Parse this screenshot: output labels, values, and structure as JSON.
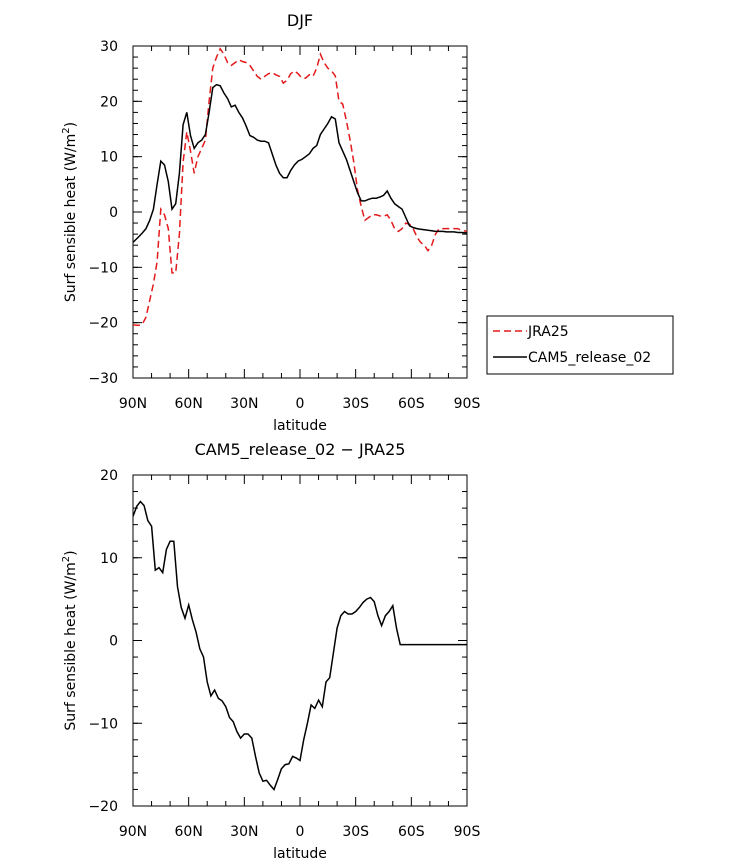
{
  "chart_data": [
    {
      "type": "line",
      "title": "DJF",
      "xlabel": "latitude",
      "ylabel": "Surf sensible heat (W/m",
      "ylabel_sup": "2",
      "ylabel_close": ")",
      "xlim": [
        90,
        -90
      ],
      "ylim": [
        -30,
        30
      ],
      "xticks": [
        90,
        60,
        30,
        0,
        -30,
        -60,
        -90
      ],
      "xtick_labels": [
        "90N",
        "60N",
        "30N",
        "0",
        "30S",
        "60S",
        "90S"
      ],
      "yticks": [
        -30,
        -20,
        -10,
        0,
        10,
        20,
        30
      ],
      "ytick_labels": [
        "−30",
        "−20",
        "−10",
        "0",
        "10",
        "20",
        "30"
      ],
      "legend": {
        "position": "right",
        "entries": [
          "JRA25",
          "CAM5_release_02"
        ]
      },
      "series": [
        {
          "name": "JRA25",
          "color": "#e31a1c",
          "dash": true,
          "x": [
            90,
            87,
            85,
            83,
            81,
            79,
            77,
            75,
            73,
            71,
            69,
            67,
            65,
            63,
            61,
            59,
            57,
            55,
            53,
            51,
            49,
            47,
            45,
            43,
            41,
            39,
            37,
            35,
            33,
            31,
            29,
            27,
            25,
            23,
            21,
            19,
            17,
            15,
            13,
            11,
            9,
            7,
            5,
            3,
            1,
            -1,
            -3,
            -5,
            -7,
            -9,
            -11,
            -13,
            -15,
            -17,
            -19,
            -21,
            -23,
            -25,
            -27,
            -29,
            -31,
            -33,
            -35,
            -37,
            -39,
            -41,
            -43,
            -45,
            -47,
            -49,
            -51,
            -53,
            -55,
            -57,
            -59,
            -61,
            -63,
            -65,
            -67,
            -69,
            -71,
            -73,
            -75,
            -77,
            -79,
            -81,
            -83,
            -85,
            -87,
            -90
          ],
          "values": [
            -20.4,
            -20.5,
            -20.3,
            -19,
            -16,
            -13,
            -9,
            0.5,
            -0.5,
            -3,
            -11,
            -11,
            -4,
            9,
            14.5,
            11,
            7,
            10,
            11.5,
            13,
            20,
            26,
            28,
            29.5,
            28.5,
            27,
            26.5,
            27,
            27.5,
            27.2,
            27,
            26.5,
            25.5,
            24.5,
            24,
            24.5,
            25,
            25.2,
            24.8,
            24.5,
            23.3,
            23.8,
            25,
            25.5,
            25,
            24.2,
            24.2,
            24.8,
            24.5,
            26,
            28.5,
            27,
            26,
            25.5,
            24.6,
            20,
            19.5,
            16.5,
            13,
            9,
            4,
            1,
            -1.5,
            -1,
            -0.5,
            -0.5,
            -0.7,
            -0.8,
            -0.5,
            -1.5,
            -3,
            -3.5,
            -3,
            -2,
            -2.2,
            -3,
            -4.5,
            -5.5,
            -6,
            -7,
            -6,
            -4,
            -3,
            -3,
            -3,
            -3,
            -3,
            -3,
            -3.3,
            -3.5
          ]
        },
        {
          "name": "CAM5_release_02",
          "color": "#000000",
          "dash": false,
          "x": [
            90,
            87,
            85,
            83,
            81,
            79,
            77,
            75,
            73,
            71,
            69,
            67,
            65,
            63,
            61,
            59,
            57,
            55,
            53,
            51,
            49,
            47,
            45,
            43,
            41,
            39,
            37,
            35,
            33,
            31,
            29,
            27,
            25,
            23,
            21,
            19,
            17,
            15,
            13,
            11,
            9,
            7,
            5,
            3,
            1,
            -1,
            -3,
            -5,
            -7,
            -9,
            -11,
            -13,
            -15,
            -17,
            -19,
            -21,
            -23,
            -25,
            -27,
            -29,
            -31,
            -33,
            -35,
            -37,
            -39,
            -41,
            -43,
            -45,
            -47,
            -49,
            -51,
            -53,
            -55,
            -57,
            -59,
            -61,
            -63,
            -65,
            -67,
            -69,
            -71,
            -73,
            -75,
            -77,
            -79,
            -81,
            -83,
            -85,
            -87,
            -90
          ],
          "values": [
            -5.5,
            -4.5,
            -3.8,
            -3,
            -1.5,
            0.5,
            5,
            9.2,
            8.5,
            5.5,
            0.5,
            1.5,
            7,
            15.8,
            18,
            13.8,
            11.5,
            12.5,
            13,
            14,
            18,
            22.5,
            23,
            22.8,
            21.5,
            20.5,
            19,
            19.3,
            18,
            17,
            15.5,
            13.8,
            13.5,
            13,
            12.8,
            12.8,
            12.5,
            10.5,
            8.5,
            7,
            6.2,
            6.2,
            7.5,
            8.5,
            9.2,
            9.5,
            10,
            10.5,
            11.5,
            12,
            14,
            15,
            16,
            17.2,
            16.8,
            12.5,
            11,
            9.5,
            7.5,
            5.5,
            3.5,
            2,
            2,
            2.3,
            2.5,
            2.5,
            2.7,
            3,
            3.8,
            2.5,
            1.5,
            1,
            0.5,
            -1,
            -2.5,
            -2.8,
            -3,
            -3.1,
            -3.2,
            -3.3,
            -3.4,
            -3.5,
            -3.5,
            -3.5,
            -3.6,
            -3.6,
            -3.6,
            -3.7,
            -3.7,
            -3.8
          ]
        }
      ]
    },
    {
      "type": "line",
      "title": "CAM5_release_02 − JRA25",
      "xlabel": "latitude",
      "ylabel": "Surf sensible heat (W/m",
      "ylabel_sup": "2",
      "ylabel_close": ")",
      "xlim": [
        90,
        -90
      ],
      "ylim": [
        -20,
        20
      ],
      "xticks": [
        90,
        60,
        30,
        0,
        -30,
        -60,
        -90
      ],
      "xtick_labels": [
        "90N",
        "60N",
        "30N",
        "0",
        "30S",
        "60S",
        "90S"
      ],
      "yticks": [
        -20,
        -10,
        0,
        10,
        20
      ],
      "ytick_labels": [
        "−20",
        "−10",
        "0",
        "10",
        "20"
      ],
      "series": [
        {
          "name": "CAM5_release_02 − JRA25",
          "color": "#000000",
          "dash": false,
          "x": [
            90,
            88,
            86,
            84,
            82,
            80,
            78,
            76,
            74,
            72,
            70,
            68,
            66,
            64,
            62,
            60,
            58,
            56,
            54,
            52,
            50,
            48,
            46,
            44,
            42,
            40,
            38,
            36,
            34,
            32,
            30,
            28,
            26,
            24,
            22,
            20,
            18,
            16,
            14,
            12,
            10,
            8,
            6,
            4,
            2,
            0,
            -2,
            -4,
            -6,
            -8,
            -10,
            -12,
            -14,
            -16,
            -18,
            -20,
            -22,
            -24,
            -26,
            -28,
            -30,
            -32,
            -34,
            -36,
            -38,
            -40,
            -42,
            -44,
            -46,
            -48,
            -50,
            -52,
            -54,
            -56,
            -58,
            -60,
            -62,
            -64,
            -66,
            -68,
            -70,
            -72,
            -74,
            -76,
            -78,
            -80,
            -82,
            -84,
            -86,
            -88,
            -90
          ],
          "values": [
            15,
            16.2,
            16.8,
            16.3,
            14.5,
            13.8,
            8.5,
            8.8,
            8.2,
            11,
            12,
            12,
            6.5,
            4,
            2.7,
            4.3,
            2.5,
            1,
            -1,
            -2,
            -5,
            -6.7,
            -6,
            -7,
            -7.3,
            -8,
            -9.3,
            -9.8,
            -11,
            -11.8,
            -11.3,
            -11.3,
            -11.8,
            -14,
            -16,
            -17,
            -16.9,
            -17.5,
            -18,
            -16.8,
            -15.5,
            -15,
            -14.9,
            -14,
            -14.2,
            -14.5,
            -12,
            -10,
            -7.8,
            -8.2,
            -7.2,
            -8,
            -5,
            -4.5,
            -1.5,
            1.5,
            3,
            3.5,
            3.2,
            3.2,
            3.5,
            4,
            4.6,
            5,
            5.2,
            4.7,
            3,
            1.8,
            3,
            3.5,
            4.2,
            1.5,
            -0.5,
            -0.5,
            -0.5,
            -0.5,
            -0.5,
            -0.5,
            -0.5,
            -0.5,
            -0.5,
            -0.5,
            -0.5,
            -0.5,
            -0.5,
            -0.5,
            -0.5,
            -0.5,
            -0.5,
            -0.5,
            -0.5
          ]
        }
      ]
    }
  ]
}
